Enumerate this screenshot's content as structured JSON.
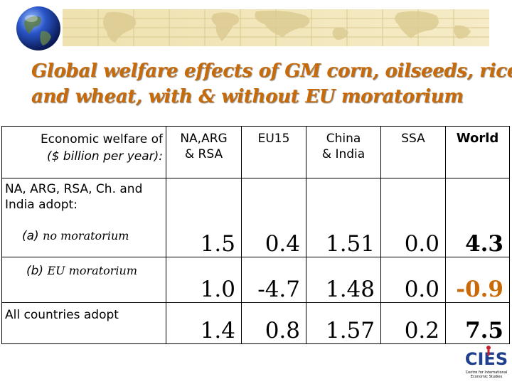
{
  "title": {
    "line1": "Global welfare effects of GM corn, oilseeds, rice",
    "line2": "and wheat, with & without EU moratorium"
  },
  "table": {
    "header": {
      "first_line1": "Economic welfare of",
      "first_line2": "($ billion per year):",
      "columns": [
        "NA,ARG\n& RSA",
        "EU15",
        "China\n& India",
        "SSA",
        "World"
      ]
    },
    "section_label": "NA, ARG, RSA, Ch. and India adopt:",
    "rows": [
      {
        "letter": "(a)",
        "label": "no moratorium",
        "values": [
          "1.5",
          "0.4",
          "1.51",
          "0.0",
          "4.3"
        ]
      },
      {
        "letter": "(b)",
        "label": "EU moratorium",
        "values": [
          "1.0",
          "-4.7",
          "1.48",
          "0.0",
          "-0.9"
        ]
      },
      {
        "label": "All countries adopt",
        "values": [
          "1.4",
          "0.8",
          "1.57",
          "0.2",
          "7.5"
        ]
      }
    ]
  },
  "logo": {
    "mark": "CIES",
    "tagline_line1": "Centre for International",
    "tagline_line2": "Economic Studies"
  },
  "colors": {
    "title": "#c86a08",
    "world_negative": "#c86a08",
    "banner": "#f1e4b4"
  },
  "icons": [
    "globe-icon",
    "world-map-banner",
    "cies-logo"
  ]
}
